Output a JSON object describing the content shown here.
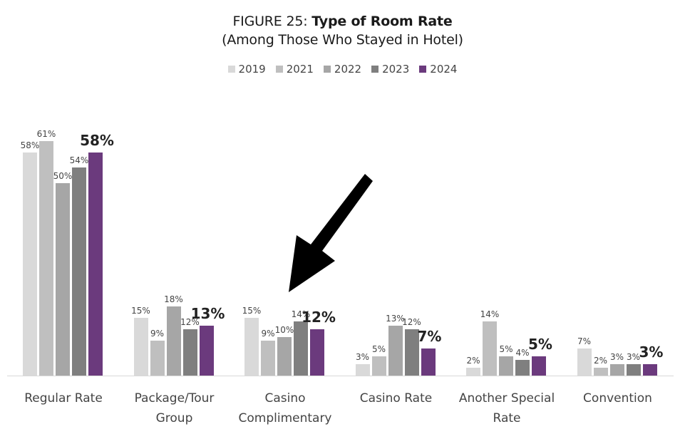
{
  "title": {
    "prefix": "FIGURE 25: ",
    "main": "Type of Room Rate",
    "subtitle": "(Among Those Who Stayed in Hotel)"
  },
  "legend": [
    {
      "label": "2019",
      "color": "#d9d9d9"
    },
    {
      "label": "2021",
      "color": "#bfbfbf"
    },
    {
      "label": "2022",
      "color": "#a6a6a6"
    },
    {
      "label": "2023",
      "color": "#7f7f7f"
    },
    {
      "label": "2024",
      "color": "#6b3a7d"
    }
  ],
  "annotation": {
    "type": "arrow",
    "points_to": "Casino Complimentary",
    "color": "#000000"
  },
  "chart_data": {
    "type": "bar",
    "title": "FIGURE 25: Type of Room Rate (Among Those Who Stayed in Hotel)",
    "xlabel": "",
    "ylabel": "",
    "ylim": [
      0,
      65
    ],
    "grid": false,
    "legend_position": "top",
    "categories": [
      "Regular Rate",
      "Package/Tour Group",
      "Casino Complimentary",
      "Casino Rate",
      "Another Special Rate",
      "Convention"
    ],
    "category_lines": [
      [
        "Regular Rate"
      ],
      [
        "Package/Tour",
        "Group"
      ],
      [
        "Casino",
        "Complimentary"
      ],
      [
        "Casino Rate"
      ],
      [
        "Another Special",
        "Rate"
      ],
      [
        "Convention"
      ]
    ],
    "series": [
      {
        "name": "2019",
        "color": "#d9d9d9",
        "values": [
          58,
          15,
          15,
          3,
          2,
          7
        ]
      },
      {
        "name": "2021",
        "color": "#bfbfbf",
        "values": [
          61,
          9,
          9,
          5,
          14,
          2
        ]
      },
      {
        "name": "2022",
        "color": "#a6a6a6",
        "values": [
          50,
          18,
          10,
          13,
          5,
          3
        ]
      },
      {
        "name": "2023",
        "color": "#7f7f7f",
        "values": [
          54,
          12,
          14,
          12,
          4,
          3
        ]
      },
      {
        "name": "2024",
        "color": "#6b3a7d",
        "values": [
          58,
          13,
          12,
          7,
          5,
          3
        ]
      }
    ],
    "value_suffix": "%",
    "highlight_series": "2024"
  }
}
